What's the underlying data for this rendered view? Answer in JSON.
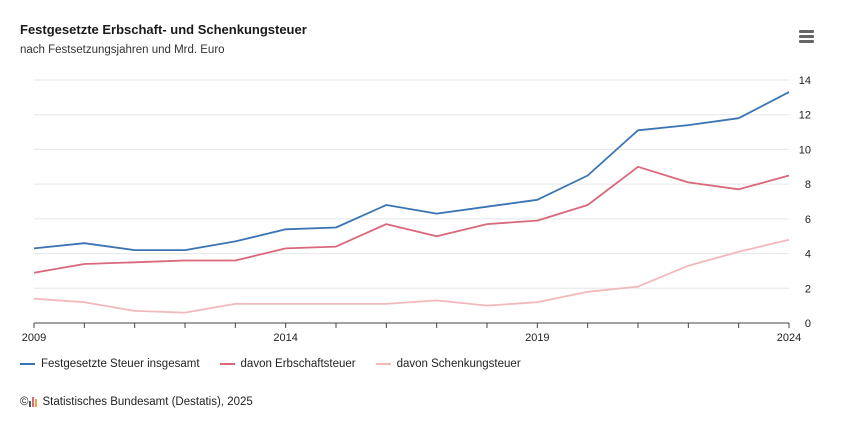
{
  "header": {
    "title": "Festgesetzte Erbschaft- und Schenkungsteuer",
    "subtitle": "nach Festsetzungsjahren und Mrd. Euro"
  },
  "menu": {
    "icon": "hamburger-menu-icon"
  },
  "credits": {
    "copyright": "©",
    "text": "Statistisches Bundesamt (Destatis), 2025"
  },
  "chart_data": {
    "type": "line",
    "title": "Festgesetzte Erbschaft- und Schenkungsteuer",
    "subtitle": "nach Festsetzungsjahren und Mrd. Euro",
    "x": [
      2009,
      2010,
      2011,
      2012,
      2013,
      2014,
      2015,
      2016,
      2017,
      2018,
      2019,
      2020,
      2021,
      2022,
      2023,
      2024
    ],
    "x_tick_labels": [
      "2009",
      "2014",
      "2019",
      "2024"
    ],
    "y_tick_labels": [
      "0",
      "2",
      "4",
      "6",
      "8",
      "10",
      "12",
      "14"
    ],
    "xlim": [
      2009,
      2024
    ],
    "ylim": [
      0,
      14
    ],
    "y_axis_position": "right",
    "grid": true,
    "legend_position": "bottom-left",
    "series": [
      {
        "name": "Festgesetzte Steuer insgesamt",
        "color": "#3a74b4",
        "values": [
          4.3,
          4.6,
          4.2,
          4.2,
          4.7,
          5.4,
          5.5,
          6.8,
          6.3,
          6.7,
          7.1,
          8.5,
          11.1,
          11.4,
          11.8,
          13.3
        ]
      },
      {
        "name": "davon Erbschaftsteuer",
        "color": "#d9687a",
        "values": [
          2.9,
          3.4,
          3.5,
          3.6,
          3.6,
          4.3,
          4.4,
          5.7,
          5.0,
          5.7,
          5.9,
          6.8,
          9.0,
          8.1,
          7.7,
          8.5
        ]
      },
      {
        "name": "davon Schenkungsteuer",
        "color": "#f2b9bd",
        "values": [
          1.4,
          1.2,
          0.7,
          0.6,
          1.1,
          1.1,
          1.1,
          1.1,
          1.3,
          1.0,
          1.2,
          1.8,
          2.1,
          3.3,
          4.1,
          4.8
        ]
      }
    ]
  }
}
